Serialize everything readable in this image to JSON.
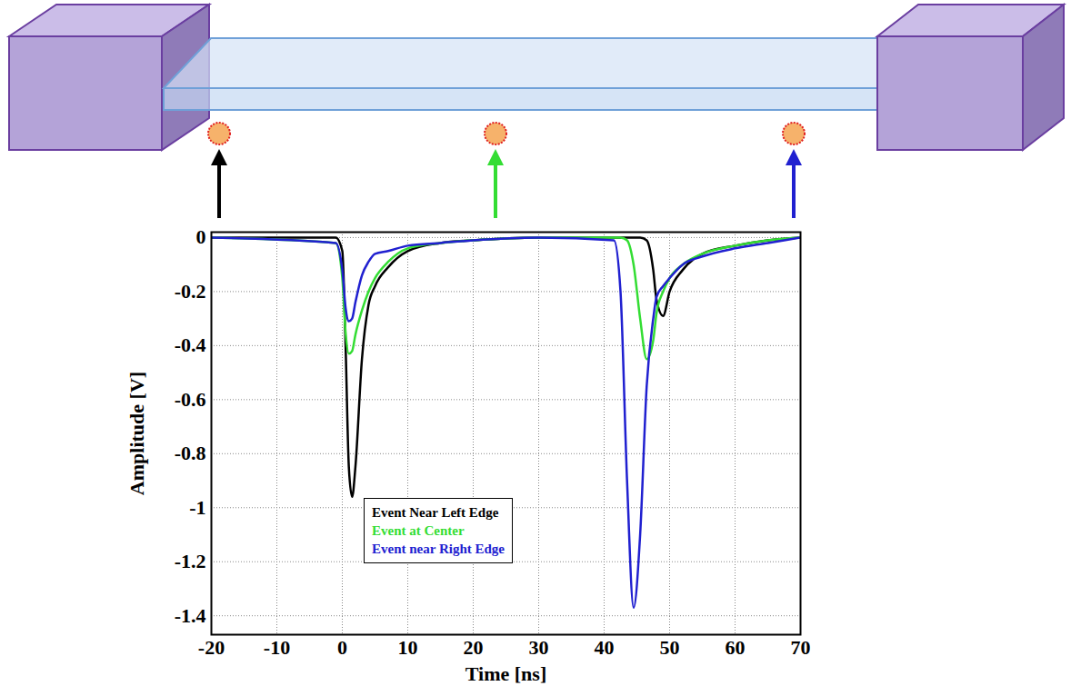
{
  "chart_data": {
    "type": "line",
    "xlabel": "Time [ns]",
    "ylabel": "Amplitude [V]",
    "xlim": [
      -20,
      70
    ],
    "ylim": [
      -1.47,
      0.02
    ],
    "xticks": [
      -20,
      -10,
      0,
      10,
      20,
      30,
      40,
      50,
      60,
      70
    ],
    "yticks": [
      0,
      -0.2,
      -0.4,
      -0.6,
      -0.8,
      -1,
      -1.2,
      -1.4
    ],
    "grid": true,
    "legend": "bottom",
    "x": [
      -20,
      -1,
      0,
      0.5,
      1,
      1.5,
      2,
      3,
      4,
      5,
      7,
      10,
      15,
      20,
      30,
      41.5,
      42.5,
      43.5,
      44.5,
      45.5,
      46.5,
      47.5,
      48,
      49,
      50,
      52,
      55,
      60,
      65,
      70
    ],
    "series": [
      {
        "name": "Event Near Left Edge",
        "color": "#000000",
        "values": [
          0,
          0,
          -0.05,
          -0.4,
          -0.85,
          -0.96,
          -0.85,
          -0.45,
          -0.25,
          -0.18,
          -0.11,
          -0.05,
          -0.02,
          -0.01,
          0,
          0,
          0,
          0,
          0,
          0,
          -0.01,
          -0.12,
          -0.23,
          -0.29,
          -0.2,
          -0.12,
          -0.06,
          -0.03,
          -0.01,
          0
        ]
      },
      {
        "name": "Event at Center",
        "color": "#33dd33",
        "values": [
          0,
          -0.02,
          -0.15,
          -0.35,
          -0.43,
          -0.42,
          -0.36,
          -0.27,
          -0.2,
          -0.15,
          -0.09,
          -0.04,
          -0.02,
          -0.01,
          0,
          0,
          0,
          -0.01,
          -0.1,
          -0.3,
          -0.45,
          -0.38,
          -0.28,
          -0.2,
          -0.15,
          -0.1,
          -0.06,
          -0.03,
          -0.01,
          0
        ]
      },
      {
        "name": "Event near Right Edge",
        "color": "#2020d0",
        "values": [
          0,
          -0.02,
          -0.12,
          -0.26,
          -0.31,
          -0.3,
          -0.24,
          -0.14,
          -0.09,
          -0.06,
          -0.05,
          -0.03,
          -0.02,
          -0.01,
          0,
          -0.01,
          -0.2,
          -0.9,
          -1.37,
          -1.1,
          -0.55,
          -0.3,
          -0.22,
          -0.18,
          -0.15,
          -0.1,
          -0.07,
          -0.04,
          -0.02,
          0
        ]
      }
    ]
  }
}
